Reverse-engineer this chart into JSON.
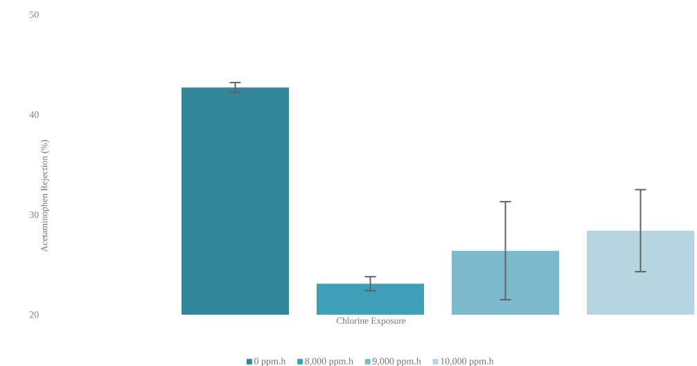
{
  "chart_data": {
    "type": "bar",
    "xlabel": "Chlorine Exposure",
    "ylabel": "Acetaminophen Rejection (%)",
    "categories": [
      null
    ],
    "ylim": [
      20,
      50
    ],
    "yticks": [
      20,
      30,
      40,
      50
    ],
    "legend": "bottom",
    "series": [
      {
        "name": "0 ppm.h",
        "color": "#32869a",
        "values": [
          42.7
        ],
        "errors": [
          0.5
        ]
      },
      {
        "name": "8,000 ppm.h",
        "color": "#3e9fb8",
        "values": [
          23.1
        ],
        "errors": [
          0.7
        ]
      },
      {
        "name": "9,000 ppm.h",
        "color": "#7bbacc",
        "values": [
          26.4
        ],
        "errors": [
          4.9
        ]
      },
      {
        "name": "10,000 ppm.h",
        "color": "#b4d5e1",
        "values": [
          28.4
        ],
        "errors": [
          4.1
        ]
      }
    ]
  }
}
